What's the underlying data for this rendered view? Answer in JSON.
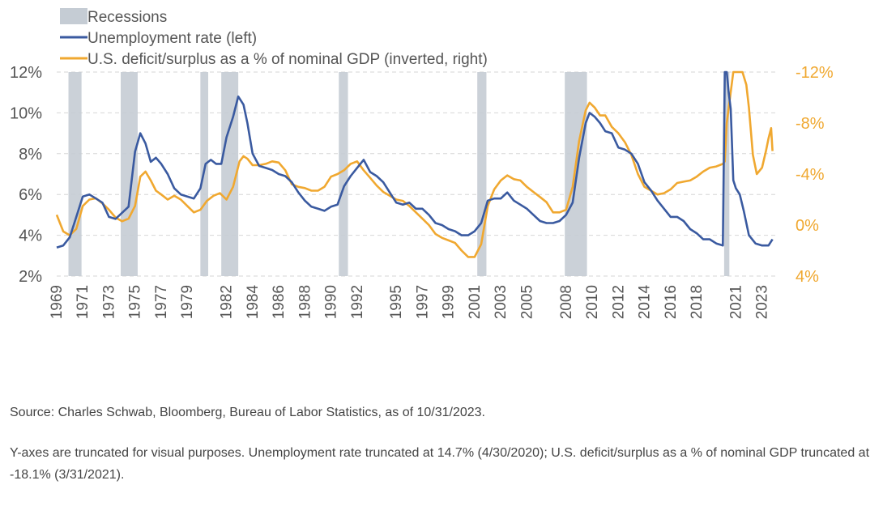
{
  "chart_data": {
    "type": "line",
    "title": "",
    "legend": {
      "placement": "top-left",
      "items": [
        {
          "label": "Recessions",
          "kind": "band",
          "color": "#c5ccd4"
        },
        {
          "label": "Unemployment rate (left)",
          "kind": "line",
          "color": "#3a5aa0"
        },
        {
          "label": "U.S. deficit/surplus as a % of nominal GDP (inverted, right)",
          "kind": "line",
          "color": "#f0a830"
        }
      ]
    },
    "x_axis": {
      "range": [
        1969,
        2024.2
      ],
      "ticks": [
        1969,
        1971,
        1973,
        1975,
        1977,
        1979,
        1982,
        1984,
        1986,
        1988,
        1990,
        1992,
        1995,
        1997,
        1999,
        2001,
        2003,
        2005,
        2008,
        2010,
        2012,
        2014,
        2016,
        2018,
        2021,
        2023
      ],
      "tick_labels": [
        "1969",
        "1971",
        "1973",
        "1975",
        "1977",
        "1979",
        "1982",
        "1984",
        "1986",
        "1988",
        "1990",
        "1992",
        "1995",
        "1997",
        "1999",
        "2001",
        "2003",
        "2005",
        "2008",
        "2010",
        "2012",
        "2014",
        "2016",
        "2018",
        "2021",
        "2023"
      ],
      "label_rotation": -90
    },
    "y_left": {
      "range": [
        2,
        12
      ],
      "ticks": [
        2,
        4,
        6,
        8,
        10,
        12
      ],
      "tick_labels": [
        "2%",
        "4%",
        "6%",
        "8%",
        "10%",
        "12%"
      ]
    },
    "y_right": {
      "inverted": true,
      "range": [
        4,
        -12
      ],
      "ticks": [
        4,
        0,
        -4,
        -8,
        -12
      ],
      "tick_labels": [
        "4%",
        "0%",
        "-4%",
        "-8%",
        "-12%"
      ]
    },
    "grid": {
      "horizontal": true,
      "style": "dashed",
      "color": "#d6d6d6"
    },
    "recessions": [
      [
        1969.9,
        1970.9
      ],
      [
        1973.9,
        1975.2
      ],
      [
        1980.0,
        1980.6
      ],
      [
        1981.6,
        1982.9
      ],
      [
        1990.6,
        1991.3
      ],
      [
        2001.2,
        2001.9
      ],
      [
        2007.9,
        2009.6
      ],
      [
        2020.1,
        2020.5
      ]
    ],
    "series": [
      {
        "name": "Unemployment rate (left)",
        "axis": "left",
        "color": "#3a5aa0",
        "x": [
          1969.0,
          1969.5,
          1970.0,
          1970.5,
          1971.0,
          1971.5,
          1972.0,
          1972.5,
          1973.0,
          1973.5,
          1974.0,
          1974.5,
          1975.0,
          1975.4,
          1975.8,
          1976.2,
          1976.6,
          1977.0,
          1977.5,
          1978.0,
          1978.5,
          1979.0,
          1979.5,
          1980.0,
          1980.4,
          1980.8,
          1981.2,
          1981.6,
          1982.0,
          1982.5,
          1982.9,
          1983.3,
          1983.6,
          1984.0,
          1984.5,
          1985.0,
          1985.5,
          1986.0,
          1986.5,
          1987.0,
          1987.5,
          1988.0,
          1988.5,
          1989.0,
          1989.5,
          1990.0,
          1990.5,
          1991.0,
          1991.5,
          1992.0,
          1992.5,
          1993.0,
          1993.5,
          1994.0,
          1994.5,
          1995.0,
          1995.5,
          1996.0,
          1996.5,
          1997.0,
          1997.5,
          1998.0,
          1998.5,
          1999.0,
          1999.5,
          2000.0,
          2000.5,
          2001.0,
          2001.5,
          2002.0,
          2002.5,
          2003.0,
          2003.5,
          2004.0,
          2004.5,
          2005.0,
          2005.5,
          2006.0,
          2006.5,
          2007.0,
          2007.5,
          2008.0,
          2008.5,
          2009.0,
          2009.5,
          2009.8,
          2010.2,
          2010.6,
          2011.0,
          2011.5,
          2012.0,
          2012.5,
          2013.0,
          2013.5,
          2014.0,
          2014.5,
          2015.0,
          2015.5,
          2016.0,
          2016.5,
          2017.0,
          2017.5,
          2018.0,
          2018.5,
          2019.0,
          2019.5,
          2020.0,
          2020.15,
          2020.3,
          2020.45,
          2020.6,
          2020.8,
          2021.0,
          2021.3,
          2021.6,
          2022.0,
          2022.5,
          2023.0,
          2023.5,
          2023.8
        ],
        "y": [
          3.4,
          3.5,
          3.9,
          4.9,
          5.9,
          6.0,
          5.8,
          5.6,
          4.9,
          4.8,
          5.1,
          5.4,
          8.1,
          9.0,
          8.5,
          7.6,
          7.8,
          7.5,
          7.0,
          6.3,
          6.0,
          5.9,
          5.8,
          6.3,
          7.5,
          7.7,
          7.5,
          7.5,
          8.8,
          9.8,
          10.8,
          10.4,
          9.5,
          8.0,
          7.4,
          7.3,
          7.2,
          7.0,
          6.9,
          6.6,
          6.1,
          5.7,
          5.4,
          5.3,
          5.2,
          5.4,
          5.5,
          6.4,
          6.9,
          7.3,
          7.7,
          7.1,
          6.9,
          6.6,
          6.1,
          5.6,
          5.5,
          5.6,
          5.3,
          5.3,
          5.0,
          4.6,
          4.5,
          4.3,
          4.2,
          4.0,
          4.0,
          4.2,
          4.6,
          5.7,
          5.8,
          5.8,
          6.1,
          5.7,
          5.5,
          5.3,
          5.0,
          4.7,
          4.6,
          4.6,
          4.7,
          5.0,
          5.6,
          7.8,
          9.5,
          10.0,
          9.8,
          9.5,
          9.1,
          9.0,
          8.3,
          8.2,
          8.0,
          7.5,
          6.6,
          6.2,
          5.7,
          5.3,
          4.9,
          4.9,
          4.7,
          4.3,
          4.1,
          3.8,
          3.8,
          3.6,
          3.5,
          12.0,
          12.0,
          11.0,
          10.2,
          6.7,
          6.3,
          6.0,
          5.2,
          4.0,
          3.6,
          3.5,
          3.5,
          3.8
        ]
      },
      {
        "name": "U.S. deficit/surplus as a % of nominal GDP (inverted, right)",
        "axis": "right",
        "color": "#f0a830",
        "x": [
          1969.0,
          1969.5,
          1970.0,
          1970.5,
          1971.0,
          1971.5,
          1972.0,
          1972.5,
          1973.0,
          1973.5,
          1974.0,
          1974.5,
          1975.0,
          1975.4,
          1975.8,
          1976.2,
          1976.6,
          1977.0,
          1977.5,
          1978.0,
          1978.5,
          1979.0,
          1979.5,
          1980.0,
          1980.5,
          1981.0,
          1981.5,
          1982.0,
          1982.5,
          1983.0,
          1983.3,
          1983.6,
          1984.0,
          1984.5,
          1985.0,
          1985.5,
          1986.0,
          1986.5,
          1987.0,
          1987.5,
          1988.0,
          1988.5,
          1989.0,
          1989.5,
          1990.0,
          1990.5,
          1991.0,
          1991.5,
          1992.0,
          1992.5,
          1993.0,
          1993.5,
          1994.0,
          1994.5,
          1995.0,
          1995.5,
          1996.0,
          1996.5,
          1997.0,
          1997.5,
          1998.0,
          1998.5,
          1999.0,
          1999.5,
          2000.0,
          2000.5,
          2001.0,
          2001.5,
          2002.0,
          2002.5,
          2003.0,
          2003.5,
          2004.0,
          2004.5,
          2005.0,
          2005.5,
          2006.0,
          2006.5,
          2007.0,
          2007.5,
          2008.0,
          2008.5,
          2009.0,
          2009.5,
          2009.8,
          2010.2,
          2010.6,
          2011.0,
          2011.5,
          2012.0,
          2012.5,
          2013.0,
          2013.5,
          2014.0,
          2014.5,
          2015.0,
          2015.5,
          2016.0,
          2016.5,
          2017.0,
          2017.5,
          2018.0,
          2018.5,
          2019.0,
          2019.5,
          2020.0,
          2020.15,
          2020.3,
          2020.8,
          2021.0,
          2021.2,
          2021.5,
          2021.8,
          2022.0,
          2022.3,
          2022.6,
          2023.0,
          2023.3,
          2023.5,
          2023.7,
          2023.8
        ],
        "y": [
          -0.8,
          0.5,
          0.8,
          0.3,
          -1.5,
          -2.0,
          -2.1,
          -1.7,
          -1.2,
          -0.6,
          -0.3,
          -0.5,
          -1.5,
          -3.8,
          -4.2,
          -3.5,
          -2.7,
          -2.4,
          -2.0,
          -2.3,
          -2.0,
          -1.5,
          -1.0,
          -1.2,
          -1.9,
          -2.3,
          -2.5,
          -2.0,
          -3.0,
          -5.0,
          -5.4,
          -5.2,
          -4.7,
          -4.7,
          -4.8,
          -5.0,
          -4.9,
          -4.3,
          -3.2,
          -3.0,
          -2.9,
          -2.7,
          -2.7,
          -3.0,
          -3.8,
          -4.0,
          -4.3,
          -4.8,
          -5.0,
          -4.3,
          -3.7,
          -3.1,
          -2.6,
          -2.3,
          -2.0,
          -1.9,
          -1.5,
          -1.0,
          -0.5,
          0.0,
          0.7,
          1.0,
          1.2,
          1.4,
          2.0,
          2.5,
          2.5,
          1.5,
          -1.5,
          -2.8,
          -3.5,
          -3.9,
          -3.6,
          -3.5,
          -3.0,
          -2.6,
          -2.2,
          -1.8,
          -1.0,
          -1.0,
          -1.2,
          -3.0,
          -6.6,
          -9.0,
          -9.6,
          -9.2,
          -8.6,
          -8.6,
          -7.7,
          -7.2,
          -6.5,
          -5.5,
          -4.0,
          -3.0,
          -2.7,
          -2.4,
          -2.5,
          -2.8,
          -3.3,
          -3.4,
          -3.5,
          -3.8,
          -4.2,
          -4.5,
          -4.6,
          -4.8,
          -5.0,
          -8.0,
          -12.0,
          -12.0,
          -12.0,
          -12.0,
          -11.0,
          -9.2,
          -5.5,
          -4.0,
          -4.5,
          -5.8,
          -6.8,
          -7.6,
          -5.8
        ]
      }
    ]
  },
  "notes": {
    "source": "Source: Charles Schwab, Bloomberg, Bureau of Labor Statistics, as of 10/31/2023.",
    "truncation": "Y-axes are truncated for visual purposes. Unemployment rate truncated at 14.7% (4/30/2020); U.S. deficit/surplus as a % of nominal GDP truncated at -18.1% (3/31/2021)."
  }
}
